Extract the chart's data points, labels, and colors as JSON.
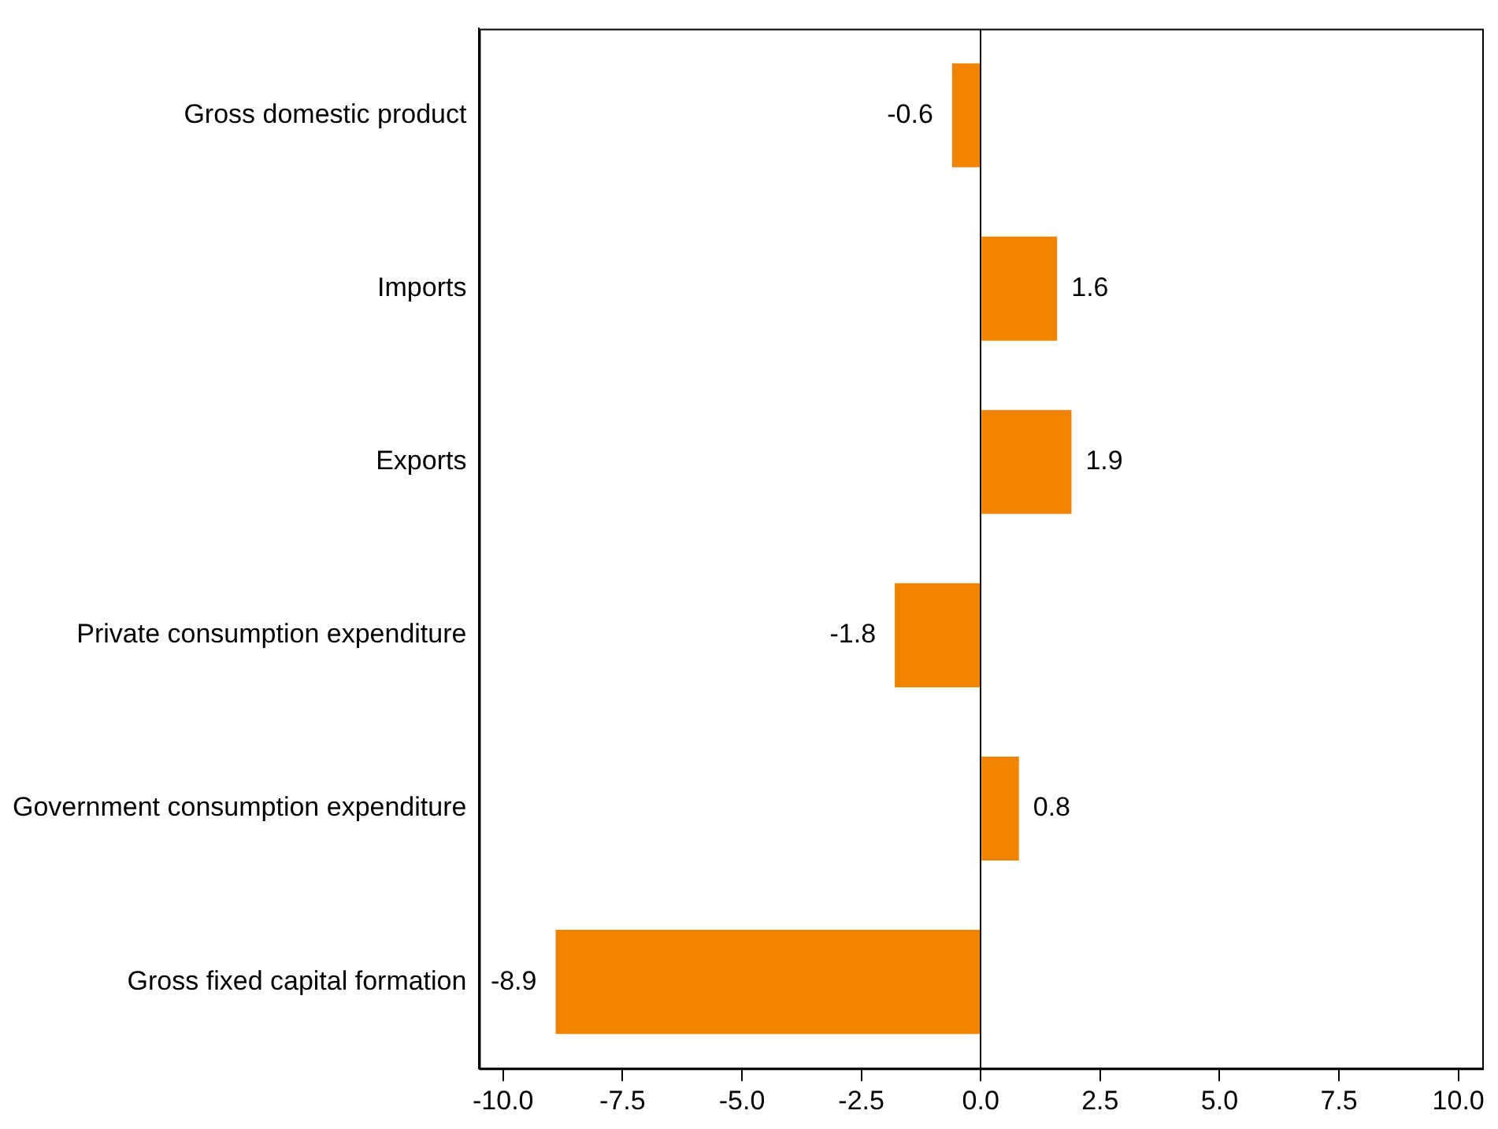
{
  "chart_data": {
    "type": "bar",
    "orientation": "horizontal",
    "categories": [
      "Gross domestic product",
      "Imports",
      "Exports",
      "Private consumption expenditure",
      "Government consumption expenditure",
      "Gross fixed capital formation"
    ],
    "values": [
      -0.6,
      1.6,
      1.9,
      -1.8,
      0.8,
      -8.9
    ],
    "color": "#f08400",
    "xlim": [
      -10.5,
      10.5
    ],
    "xticks": [
      {
        "value": -10,
        "label": "-10.0"
      },
      {
        "value": -7.5,
        "label": "-7.5"
      },
      {
        "value": -5,
        "label": "-5.0"
      },
      {
        "value": -2.5,
        "label": "-2.5"
      },
      {
        "value": 0,
        "label": "0.0"
      },
      {
        "value": 2.5,
        "label": "2.5"
      },
      {
        "value": 5,
        "label": "5.0"
      },
      {
        "value": 7.5,
        "label": "7.5"
      },
      {
        "value": 10,
        "label": "10.0"
      }
    ],
    "data_labels": true
  }
}
